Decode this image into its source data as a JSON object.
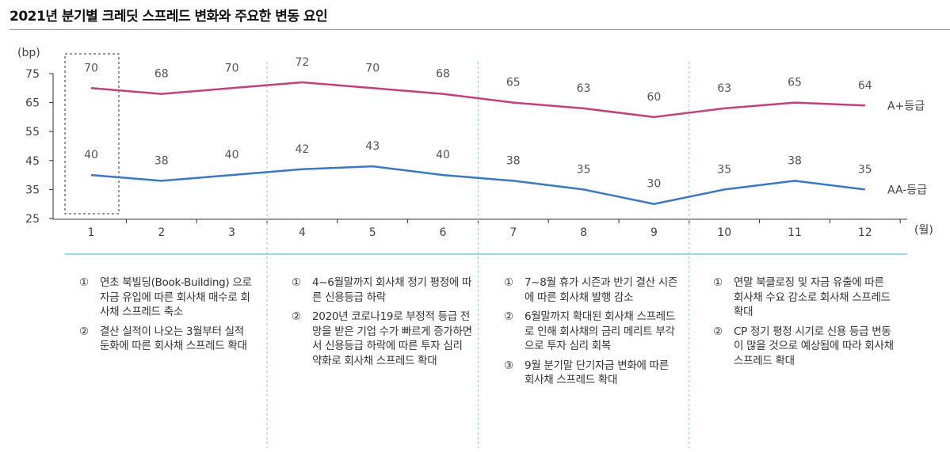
{
  "title": "2021년 분기별 크레딧 스프레드 변화와 주요한 변동 요인",
  "chart_data": {
    "type": "line",
    "ylabel": "(bp)",
    "xlabel": "(월)",
    "ylim": [
      25,
      75
    ],
    "yticks": [
      25,
      35,
      45,
      55,
      65,
      75
    ],
    "x": [
      1,
      2,
      3,
      4,
      5,
      6,
      7,
      8,
      9,
      10,
      11,
      12
    ],
    "series": [
      {
        "name": "A+등급",
        "color": "#c2417a",
        "values": [
          70,
          68,
          70,
          72,
          70,
          68,
          65,
          63,
          60,
          63,
          65,
          64
        ]
      },
      {
        "name": "AA-등급",
        "color": "#3a78c4",
        "values": [
          40,
          38,
          40,
          42,
          43,
          40,
          38,
          35,
          30,
          35,
          38,
          35
        ]
      }
    ],
    "highlight_month": 1
  },
  "notes": [
    {
      "items": [
        {
          "n": "①",
          "t": "연초 북빌딩(Book-Building) 으로 자금 유입에 따른 회사채 매수로 회사채 스프레드 축소"
        },
        {
          "n": "②",
          "t": "결산 실적이 나오는 3월부터 실적 둔화에 따른 회사채 스프레드 확대"
        }
      ]
    },
    {
      "items": [
        {
          "n": "①",
          "t": "4~6월말까지 회사채 정기 평정에 따른 신용등급 하락"
        },
        {
          "n": "②",
          "t": "2020년 코로나19로 부정적 등급 전망을 받은 기업 수가 빠르게 증가하면서 신용등급 하락에 따른 투자 심리 약화로 회사채 스프레드 확대"
        }
      ]
    },
    {
      "items": [
        {
          "n": "①",
          "t": "7~8월 휴가 시즌과 반기 결산 시즌에 따른 회사채 발행 감소"
        },
        {
          "n": "②",
          "t": "6월말까지 확대된 회사채 스프레드로 인해 회사채의 금리 메리트 부각으로 투자 심리 회복"
        },
        {
          "n": "③",
          "t": "9월 분기말 단기자금 변화에 따른 회사채 스프레드 확대"
        }
      ]
    },
    {
      "items": [
        {
          "n": "①",
          "t": "연말 북클로징 및 자금 유출에 따른 회사채 수요 감소로 회사채 스프레드 확대"
        },
        {
          "n": "②",
          "t": "CP 정기 평정 시기로 신용 등급 변동이 많을 것으로 예상됨에 따라 회사채 스프레드 확대"
        }
      ]
    }
  ]
}
